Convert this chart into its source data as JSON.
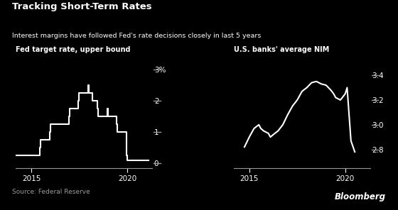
{
  "title": "Tracking Short-Term Rates",
  "subtitle": "Interest margins have followed Fed's rate decisions closely in last 5 years",
  "source": "Source: Federal Reserve",
  "bloomberg": "Bloomberg",
  "background_color": "#000000",
  "text_color": "#ffffff",
  "line_color": "#ffffff",
  "axis_color": "#999999",
  "left_title": "Fed target rate, upper bound",
  "left_yticks": [
    0,
    1,
    2,
    3
  ],
  "left_ytick_labels": [
    "0",
    "1",
    "2",
    "3%"
  ],
  "left_xlim": [
    2014.2,
    2021.3
  ],
  "left_ylim": [
    -0.15,
    3.4
  ],
  "left_xticks": [
    2015,
    2020
  ],
  "fed_x": [
    2014.0,
    2015.45,
    2015.45,
    2015.5,
    2015.5,
    2015.95,
    2015.95,
    2016.0,
    2016.0,
    2016.95,
    2016.95,
    2017.0,
    2017.0,
    2017.45,
    2017.45,
    2017.5,
    2017.5,
    2017.95,
    2017.95,
    2018.0,
    2018.0,
    2018.2,
    2018.2,
    2018.45,
    2018.45,
    2018.5,
    2018.5,
    2018.95,
    2018.95,
    2019.0,
    2019.0,
    2019.45,
    2019.45,
    2019.5,
    2019.5,
    2019.95,
    2019.95,
    2020.0,
    2020.0,
    2020.3,
    2020.3,
    2021.1
  ],
  "fed_y": [
    0.25,
    0.25,
    0.5,
    0.5,
    0.75,
    0.75,
    1.0,
    1.0,
    1.25,
    1.25,
    1.5,
    1.5,
    1.75,
    1.75,
    2.0,
    2.0,
    2.25,
    2.25,
    2.5,
    2.5,
    2.25,
    2.25,
    2.0,
    2.0,
    1.75,
    1.75,
    1.5,
    1.5,
    1.75,
    1.75,
    1.5,
    1.5,
    1.25,
    1.25,
    1.0,
    1.0,
    0.25,
    0.25,
    0.1,
    0.1,
    0.1,
    0.1
  ],
  "right_title": "U.S. banks' average NIM",
  "right_yticks": [
    2.8,
    3.0,
    3.2,
    3.4
  ],
  "right_ytick_labels": [
    "2.8",
    "3.0",
    "3.2",
    "3.4"
  ],
  "right_xlim": [
    2014.2,
    2021.3
  ],
  "right_ylim": [
    2.65,
    3.55
  ],
  "right_xticks": [
    2015,
    2020
  ],
  "nim_x": [
    2014.75,
    2015.0,
    2015.25,
    2015.5,
    2015.6,
    2015.75,
    2016.0,
    2016.1,
    2016.25,
    2016.5,
    2016.75,
    2017.0,
    2017.25,
    2017.5,
    2017.75,
    2018.0,
    2018.25,
    2018.5,
    2018.75,
    2019.0,
    2019.25,
    2019.4,
    2019.5,
    2019.75,
    2020.0,
    2020.1,
    2020.3,
    2020.5
  ],
  "nim_y": [
    2.82,
    2.9,
    2.97,
    3.0,
    2.97,
    2.95,
    2.93,
    2.9,
    2.92,
    2.95,
    3.0,
    3.08,
    3.15,
    3.2,
    3.27,
    3.3,
    3.34,
    3.35,
    3.33,
    3.32,
    3.28,
    3.25,
    3.22,
    3.2,
    3.25,
    3.3,
    2.87,
    2.78
  ]
}
